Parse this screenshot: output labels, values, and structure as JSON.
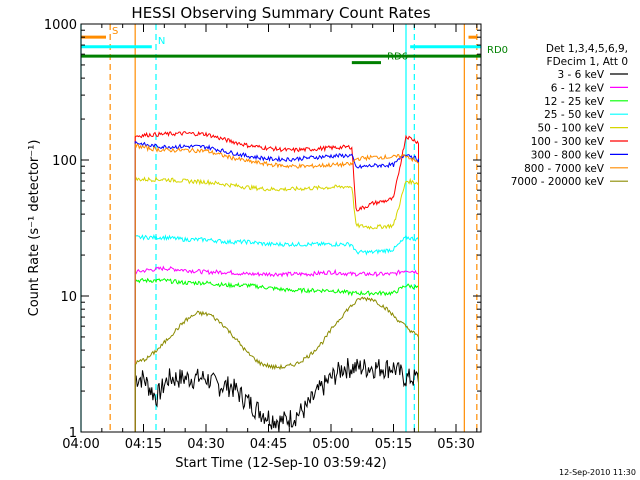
{
  "chart_data": {
    "type": "line",
    "title": "HESSI Observing Summary Count Rates",
    "xlabel": "Start Time (12-Sep-10 03:59:42)",
    "ylabel": "Count Rate (s⁻¹ detector⁻¹)",
    "yscale": "log",
    "ylim": [
      1,
      1000
    ],
    "xlim": [
      "04:00",
      "05:36"
    ],
    "x_ticks": [
      "04:00",
      "04:15",
      "04:30",
      "04:45",
      "05:00",
      "05:15",
      "05:30"
    ],
    "y_ticks": [
      "1",
      "10",
      "100",
      "1000"
    ],
    "legend_header": [
      "Det 1,3,4,5,6,9,",
      "FDecim 1, Att 0"
    ],
    "legend_position": "right",
    "timestamp": "12-Sep-2010 11:30",
    "data_interval": [
      "04:13",
      "05:21"
    ],
    "series": [
      {
        "name": "3 - 6 keV",
        "color": "#000000",
        "x": [
          "04:13",
          "04:15",
          "04:18",
          "04:21",
          "04:24",
          "04:27",
          "04:30",
          "04:33",
          "04:36",
          "04:39",
          "04:42",
          "04:45",
          "04:48",
          "04:51",
          "04:54",
          "04:57",
          "05:00",
          "05:03",
          "05:06",
          "05:09",
          "05:12",
          "05:15",
          "05:18",
          "05:21"
        ],
        "y": [
          2.5,
          2.5,
          1.8,
          2.5,
          2.5,
          2.5,
          2.5,
          2.2,
          2.2,
          1.8,
          1.5,
          1.3,
          1.2,
          1.3,
          1.5,
          2.0,
          2.5,
          3.0,
          3.0,
          3.0,
          3.0,
          3.0,
          2.5,
          2.5
        ]
      },
      {
        "name": "6 - 12 keV",
        "color": "#ff00ff",
        "x": [
          "04:13",
          "04:16",
          "04:20",
          "04:25",
          "04:30",
          "04:35",
          "04:40",
          "04:45",
          "04:50",
          "04:55",
          "05:00",
          "05:05",
          "05:06",
          "05:10",
          "05:15",
          "05:18",
          "05:21"
        ],
        "y": [
          15,
          15.5,
          16,
          15.5,
          15,
          15,
          14.5,
          14.5,
          14.5,
          14.5,
          15,
          14.5,
          14.5,
          14.5,
          14.5,
          15.5,
          15
        ]
      },
      {
        "name": "12 - 25 keV",
        "color": "#00ff00",
        "x": [
          "04:13",
          "04:16",
          "04:20",
          "04:25",
          "04:30",
          "04:35",
          "04:40",
          "04:45",
          "04:50",
          "04:55",
          "05:00",
          "05:05",
          "05:06",
          "05:10",
          "05:15",
          "05:18",
          "05:21"
        ],
        "y": [
          13,
          13,
          13,
          12.5,
          12.5,
          12,
          12,
          11.5,
          11,
          11,
          11,
          10.5,
          10.5,
          10.5,
          10.5,
          12,
          11.5
        ]
      },
      {
        "name": "25 - 50 keV",
        "color": "#00ffff",
        "x": [
          "04:13",
          "04:16",
          "04:20",
          "04:25",
          "04:30",
          "04:35",
          "04:40",
          "04:45",
          "04:50",
          "04:55",
          "05:00",
          "05:05",
          "05:06",
          "05:10",
          "05:15",
          "05:18",
          "05:21"
        ],
        "y": [
          27,
          27,
          27,
          26,
          26,
          25,
          25,
          24,
          24,
          24,
          24,
          24,
          21,
          21,
          22,
          27,
          26
        ]
      },
      {
        "name": "50 - 100 keV",
        "color": "#d6d600",
        "x": [
          "04:13",
          "04:16",
          "04:20",
          "04:25",
          "04:30",
          "04:35",
          "04:40",
          "04:45",
          "04:50",
          "04:55",
          "05:00",
          "05:05",
          "05:06",
          "05:10",
          "05:15",
          "05:18",
          "05:21"
        ],
        "y": [
          72,
          72,
          72,
          70,
          69,
          66,
          63,
          61,
          61,
          62,
          63,
          64,
          33,
          32,
          33,
          70,
          68
        ]
      },
      {
        "name": "100 - 300 keV",
        "color": "#ff0000",
        "x": [
          "04:13",
          "04:16",
          "04:20",
          "04:25",
          "04:30",
          "04:35",
          "04:40",
          "04:45",
          "04:50",
          "04:55",
          "05:00",
          "05:05",
          "05:06",
          "05:08",
          "05:10",
          "05:13",
          "05:15",
          "05:18",
          "05:21"
        ],
        "y": [
          150,
          153,
          155,
          157,
          155,
          140,
          128,
          122,
          118,
          120,
          123,
          125,
          43,
          45,
          48,
          50,
          52,
          150,
          135
        ]
      },
      {
        "name": "300 - 800 keV",
        "color": "#0000ff",
        "x": [
          "04:13",
          "04:16",
          "04:20",
          "04:25",
          "04:30",
          "04:35",
          "04:40",
          "04:45",
          "04:50",
          "04:55",
          "05:00",
          "05:05",
          "05:06",
          "05:10",
          "05:15",
          "05:18",
          "05:21"
        ],
        "y": [
          135,
          128,
          125,
          126,
          125,
          115,
          107,
          102,
          101,
          104,
          107,
          108,
          88,
          91,
          92,
          112,
          100
        ]
      },
      {
        "name": "800 - 7000 keV",
        "color": "#ff8c00",
        "x": [
          "04:13",
          "04:16",
          "04:20",
          "04:25",
          "04:30",
          "04:35",
          "04:40",
          "04:45",
          "04:50",
          "04:55",
          "05:00",
          "05:05",
          "05:06",
          "05:10",
          "05:15",
          "05:18",
          "05:21"
        ],
        "y": [
          128,
          122,
          118,
          118,
          117,
          106,
          98,
          93,
          90,
          90,
          92,
          93,
          102,
          105,
          105,
          108,
          95
        ]
      },
      {
        "name": "7000 - 20000 keV",
        "color": "#8b8b00",
        "x": [
          "04:13",
          "04:16",
          "04:19",
          "04:22",
          "04:25",
          "04:28",
          "04:31",
          "04:34",
          "04:37",
          "04:40",
          "04:43",
          "04:46",
          "04:49",
          "04:52",
          "04:55",
          "04:58",
          "05:01",
          "05:04",
          "05:07",
          "05:10",
          "05:13",
          "05:16",
          "05:19",
          "05:21"
        ],
        "y": [
          3.2,
          3.5,
          4.2,
          5.3,
          6.6,
          7.5,
          7.3,
          6.2,
          4.9,
          3.8,
          3.2,
          3.0,
          3.0,
          3.2,
          3.7,
          4.6,
          6.2,
          8.0,
          9.6,
          9.5,
          8.2,
          6.7,
          5.6,
          5.0
        ]
      }
    ],
    "markers": {
      "vertical_lines": [
        {
          "time": "04:00",
          "color": "#00ffff",
          "style": "solid"
        },
        {
          "time": "04:07",
          "color": "#ff8c00",
          "style": "dashed"
        },
        {
          "time": "04:13",
          "color": "#ff8c00",
          "style": "solid"
        },
        {
          "time": "04:18",
          "color": "#00ffff",
          "style": "dashed"
        },
        {
          "time": "05:18",
          "color": "#00ffff",
          "style": "solid"
        },
        {
          "time": "05:20",
          "color": "#00ffff",
          "style": "dashed"
        },
        {
          "time": "05:32",
          "color": "#ff8c00",
          "style": "solid"
        },
        {
          "time": "05:35",
          "color": "#ff8c00",
          "style": "dashed"
        }
      ],
      "flag_bars": [
        {
          "label": "S",
          "color": "#ff8c00",
          "from": "04:00",
          "to": "04:06",
          "y": 800
        },
        {
          "label": "",
          "color": "#ff8c00",
          "from": "05:33",
          "to": "05:35",
          "y": 800
        },
        {
          "label": "N",
          "color": "#00ffff",
          "from": "04:00",
          "to": "04:17",
          "y": 680
        },
        {
          "label": "",
          "color": "#00ffff",
          "from": "05:19",
          "to": "05:36",
          "y": 680
        },
        {
          "label": "RD0",
          "color": "#008000",
          "from": "04:00",
          "to": "05:36",
          "y": 580
        },
        {
          "label": "RD6",
          "color": "#008000",
          "from": "05:05",
          "to": "05:12",
          "y": 520
        }
      ]
    }
  }
}
